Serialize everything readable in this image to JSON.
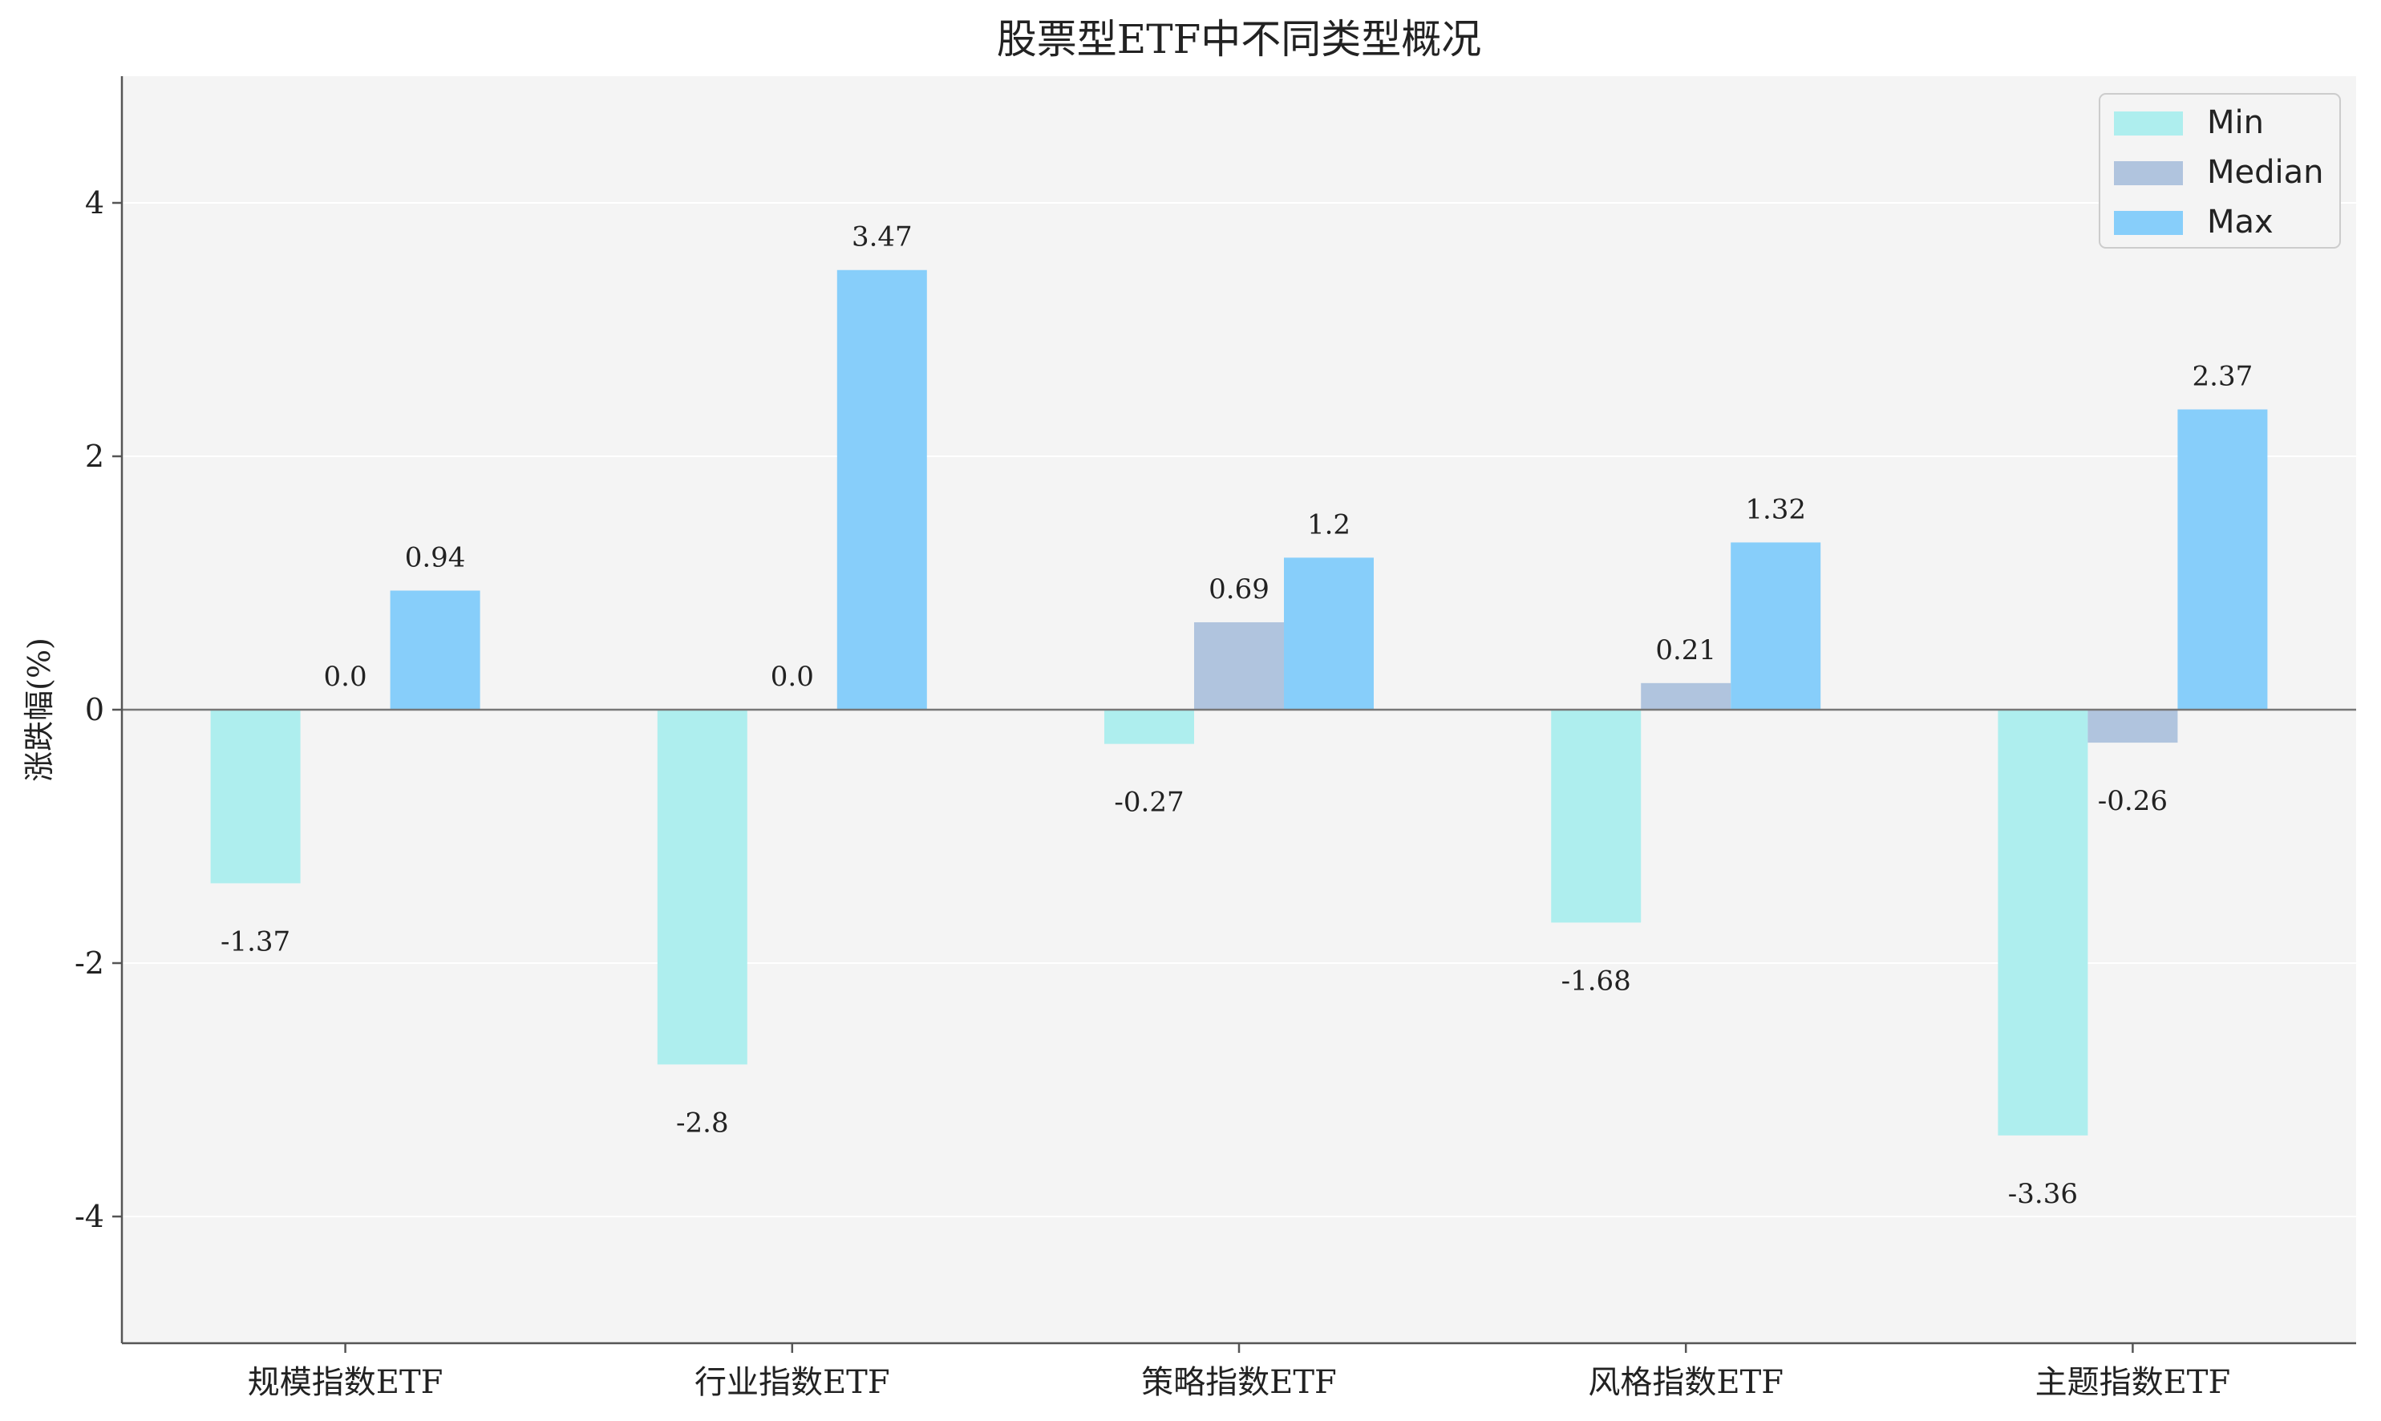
{
  "chart_data": {
    "type": "bar",
    "title": "股票型ETF中不同类型概况",
    "xlabel": "",
    "ylabel": "涨跌幅(%)",
    "categories": [
      "规模指数ETF",
      "行业指数ETF",
      "策略指数ETF",
      "风格指数ETF",
      "主题指数ETF"
    ],
    "series": [
      {
        "name": "Min",
        "values": [
          -1.37,
          -2.8,
          -0.27,
          -1.68,
          -3.36
        ],
        "labels": [
          "-1.37",
          "-2.8",
          "-0.27",
          "-1.68",
          "-3.36"
        ],
        "color": "#aeeeee"
      },
      {
        "name": "Median",
        "values": [
          0.0,
          0.0,
          0.69,
          0.21,
          -0.26
        ],
        "labels": [
          "0.0",
          "0.0",
          "0.69",
          "0.21",
          "-0.26"
        ],
        "color": "#b0c4de"
      },
      {
        "name": "Max",
        "values": [
          0.94,
          3.47,
          1.2,
          1.32,
          2.37
        ],
        "labels": [
          "0.94",
          "3.47",
          "1.2",
          "1.32",
          "2.37"
        ],
        "color": "#87cefa"
      }
    ],
    "ylim": [
      -5,
      5
    ],
    "yticks": [
      -4,
      -2,
      0,
      2,
      4
    ],
    "ytick_labels": [
      "-4",
      "-2",
      "0",
      "2",
      "4"
    ],
    "grid": true,
    "legend": "top-right",
    "background": "#f4f4f4",
    "zero_line_color": "#777777"
  }
}
